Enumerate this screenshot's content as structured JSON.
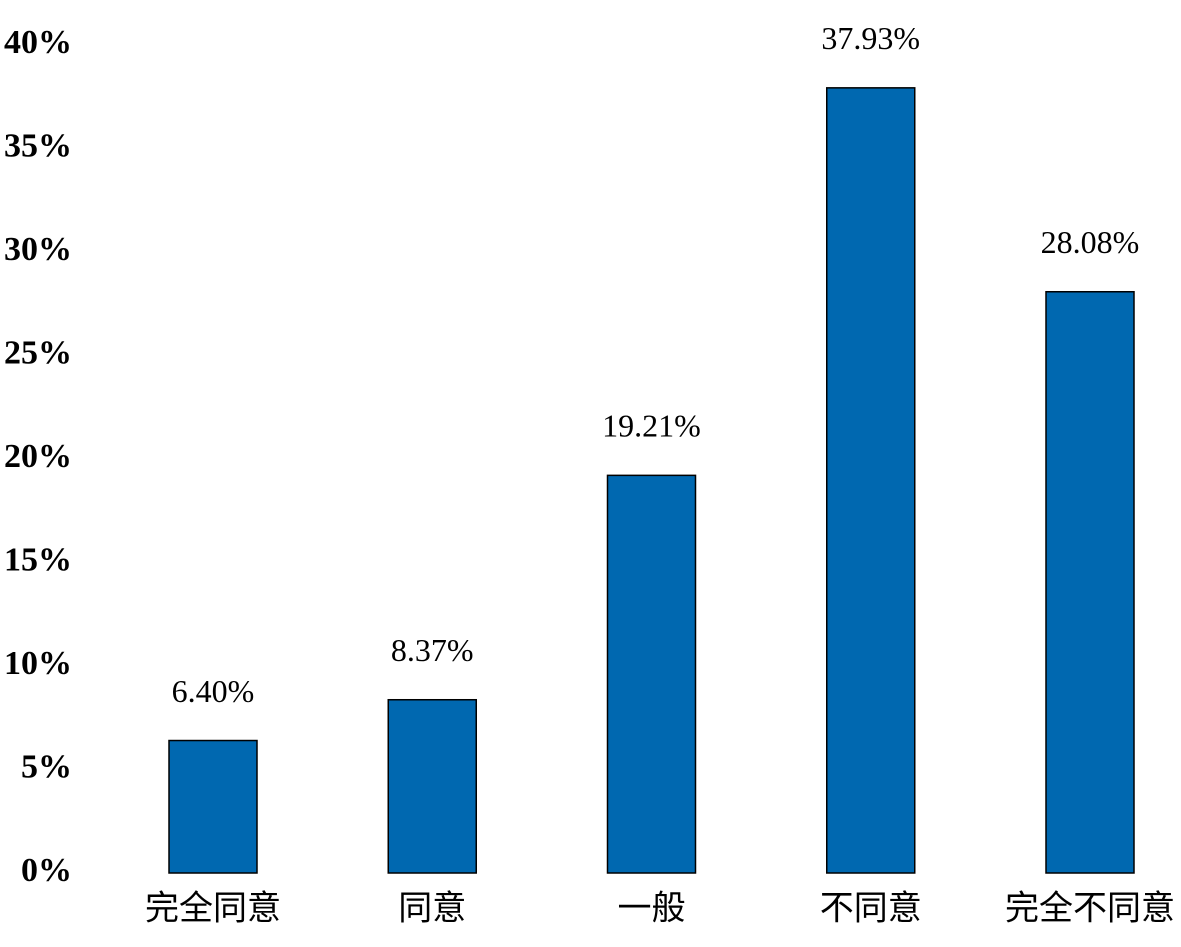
{
  "chart_data": {
    "type": "bar",
    "categories": [
      "完全同意",
      "同意",
      "一般",
      "不同意",
      "完全不同意"
    ],
    "values": [
      6.4,
      8.37,
      19.21,
      37.93,
      28.08
    ],
    "value_labels": [
      "6.40%",
      "8.37%",
      "19.21%",
      "37.93%",
      "28.08%"
    ],
    "color": "#0068b0",
    "ylim": [
      0,
      40
    ],
    "yticks": [
      {
        "value": 0,
        "label": "0%"
      },
      {
        "value": 5,
        "label": "5%"
      },
      {
        "value": 10,
        "label": "10%"
      },
      {
        "value": 15,
        "label": "15%"
      },
      {
        "value": 20,
        "label": "20%"
      },
      {
        "value": 25,
        "label": "25%"
      },
      {
        "value": 30,
        "label": "30%"
      },
      {
        "value": 35,
        "label": "35%"
      },
      {
        "value": 40,
        "label": "40%"
      }
    ],
    "grid": false
  }
}
